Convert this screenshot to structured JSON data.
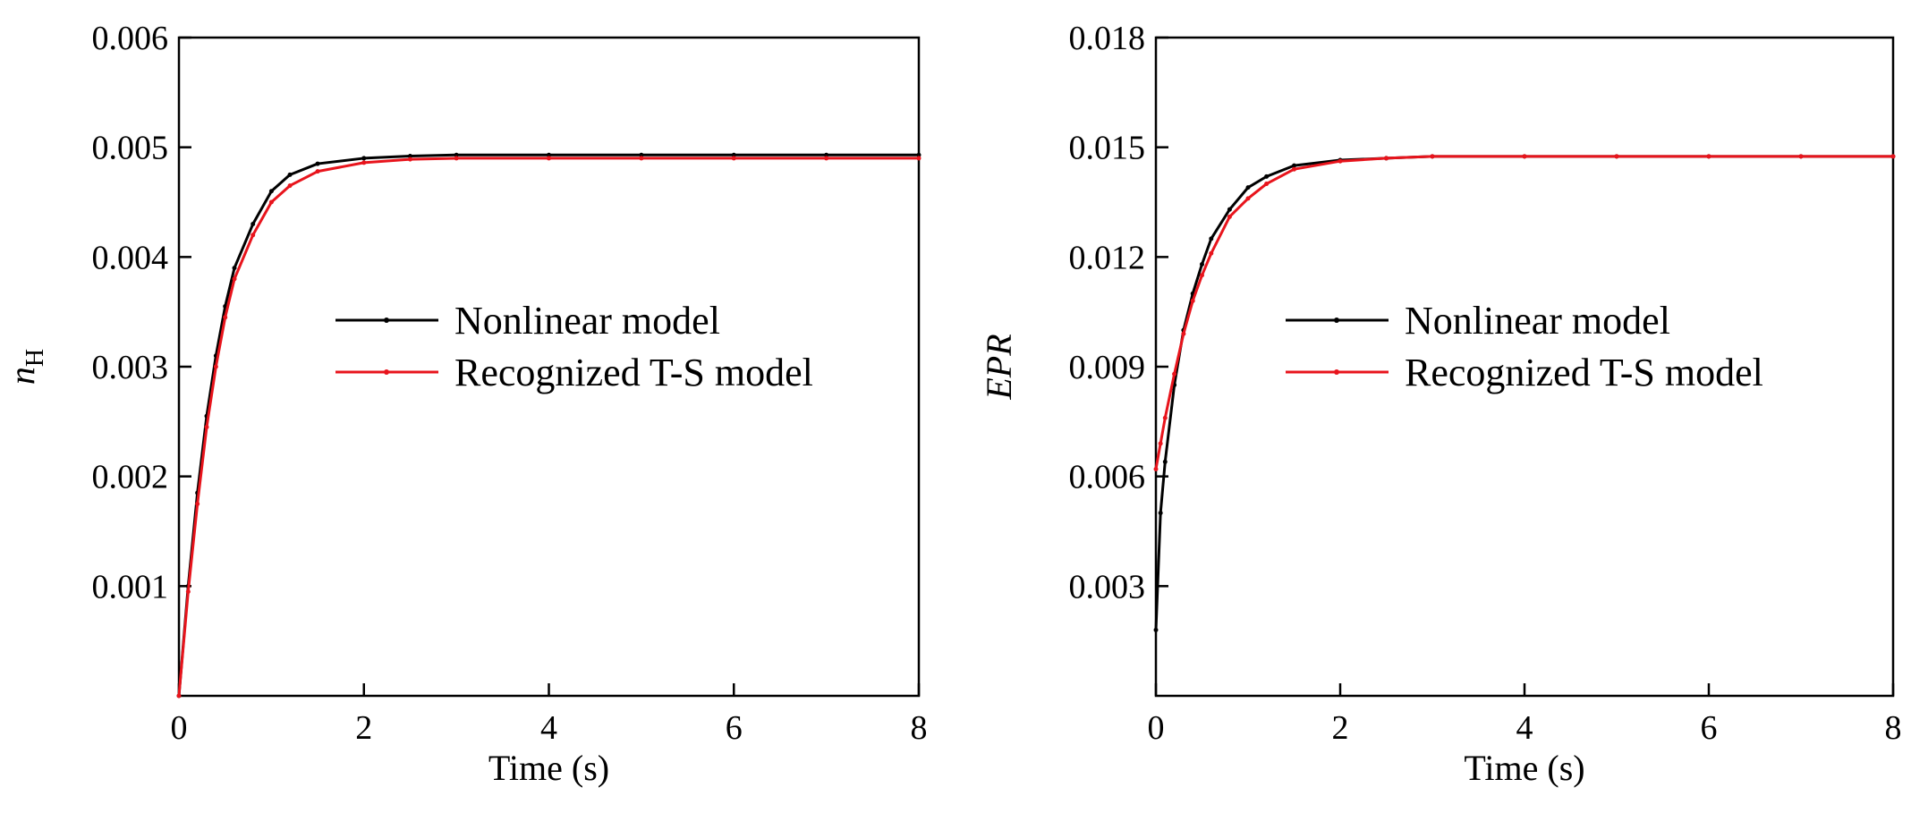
{
  "chart_data": [
    {
      "type": "line",
      "xlabel": "Time (s)",
      "ylabel": "n",
      "ylabel_subscript": "H",
      "xlim": [
        0,
        8
      ],
      "ylim": [
        0,
        0.006
      ],
      "xticks": [
        0,
        2,
        4,
        6,
        8
      ],
      "xtick_labels": [
        "0",
        "2",
        "4",
        "6",
        "8"
      ],
      "yticks": [
        0.001,
        0.002,
        0.003,
        0.004,
        0.005,
        0.006
      ],
      "ytick_labels": [
        "0.001",
        "0.002",
        "0.003",
        "0.004",
        "0.005",
        "0.006"
      ],
      "grid": false,
      "legend_position": "center-right",
      "series": [
        {
          "name": "Nonlinear model",
          "color": "#000000",
          "x": [
            0,
            0.1,
            0.2,
            0.3,
            0.4,
            0.5,
            0.6,
            0.8,
            1.0,
            1.2,
            1.5,
            2.0,
            2.5,
            3.0,
            4.0,
            5.0,
            6.0,
            7.0,
            8.0
          ],
          "y": [
            0,
            0.001,
            0.00185,
            0.00255,
            0.0031,
            0.00355,
            0.0039,
            0.0043,
            0.0046,
            0.00475,
            0.00485,
            0.0049,
            0.00492,
            0.00493,
            0.00493,
            0.00493,
            0.00493,
            0.00493,
            0.00493
          ]
        },
        {
          "name": "Recognized T-S model",
          "color": "#e8141c",
          "x": [
            0,
            0.1,
            0.2,
            0.3,
            0.4,
            0.5,
            0.6,
            0.8,
            1.0,
            1.2,
            1.5,
            2.0,
            2.5,
            3.0,
            4.0,
            5.0,
            6.0,
            7.0,
            8.0
          ],
          "y": [
            0,
            0.00095,
            0.00175,
            0.00245,
            0.003,
            0.00345,
            0.0038,
            0.0042,
            0.0045,
            0.00465,
            0.00478,
            0.00486,
            0.00489,
            0.0049,
            0.0049,
            0.0049,
            0.0049,
            0.0049,
            0.0049
          ]
        }
      ]
    },
    {
      "type": "line",
      "xlabel": "Time (s)",
      "ylabel": "EPR",
      "xlim": [
        0,
        8
      ],
      "ylim": [
        0,
        0.018
      ],
      "xticks": [
        0,
        2,
        4,
        6,
        8
      ],
      "xtick_labels": [
        "0",
        "2",
        "4",
        "6",
        "8"
      ],
      "yticks": [
        0.003,
        0.006,
        0.009,
        0.012,
        0.015,
        0.018
      ],
      "ytick_labels": [
        "0.003",
        "0.006",
        "0.009",
        "0.012",
        "0.015",
        "0.018"
      ],
      "grid": false,
      "legend_position": "center-right",
      "series": [
        {
          "name": "Nonlinear model",
          "color": "#000000",
          "x": [
            0,
            0.05,
            0.1,
            0.2,
            0.3,
            0.4,
            0.5,
            0.6,
            0.8,
            1.0,
            1.2,
            1.5,
            2.0,
            2.5,
            3.0,
            4.0,
            5.0,
            6.0,
            7.0,
            8.0
          ],
          "y": [
            0.0018,
            0.005,
            0.0064,
            0.0085,
            0.01,
            0.011,
            0.0118,
            0.0125,
            0.0133,
            0.0139,
            0.0142,
            0.0145,
            0.01465,
            0.0147,
            0.01475,
            0.01475,
            0.01475,
            0.01475,
            0.01475,
            0.01475
          ]
        },
        {
          "name": "Recognized T-S model",
          "color": "#e8141c",
          "x": [
            0,
            0.05,
            0.1,
            0.2,
            0.3,
            0.4,
            0.5,
            0.6,
            0.8,
            1.0,
            1.2,
            1.5,
            2.0,
            2.5,
            3.0,
            4.0,
            5.0,
            6.0,
            7.0,
            8.0
          ],
          "y": [
            0.0062,
            0.0069,
            0.0076,
            0.0088,
            0.0099,
            0.0108,
            0.0115,
            0.0121,
            0.0131,
            0.0136,
            0.014,
            0.0144,
            0.01462,
            0.0147,
            0.01475,
            0.01475,
            0.01475,
            0.01475,
            0.01475,
            0.01475
          ]
        }
      ]
    }
  ]
}
